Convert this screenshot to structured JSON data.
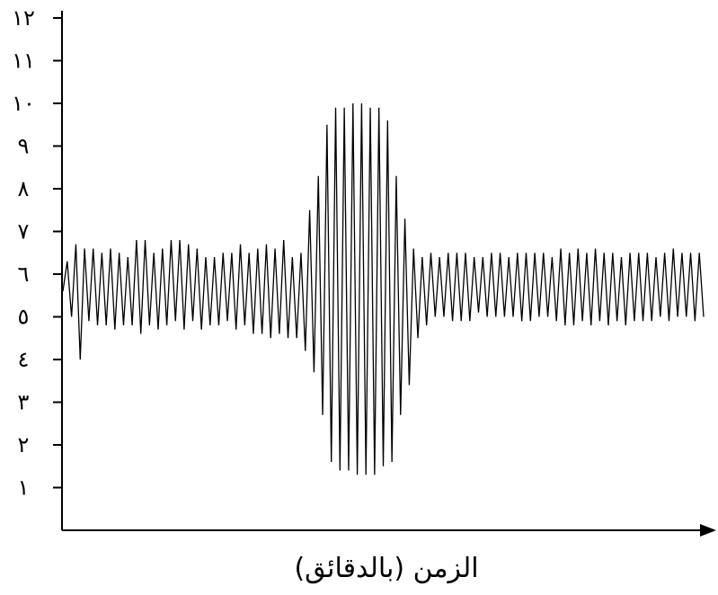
{
  "chart_data": {
    "type": "line",
    "title": "",
    "xlabel": "الزمن (بالدقائق)",
    "ylabel": "",
    "ylim": [
      0,
      12
    ],
    "y_ticks": [
      {
        "value": 1,
        "label": "١"
      },
      {
        "value": 2,
        "label": "٢"
      },
      {
        "value": 3,
        "label": "٣"
      },
      {
        "value": 4,
        "label": "٤"
      },
      {
        "value": 5,
        "label": "٥"
      },
      {
        "value": 6,
        "label": "٦"
      },
      {
        "value": 7,
        "label": "٧"
      },
      {
        "value": 8,
        "label": "٨"
      },
      {
        "value": 9,
        "label": "٩"
      },
      {
        "value": 10,
        "label": "١٠"
      },
      {
        "value": 11,
        "label": "١١"
      },
      {
        "value": 12,
        "label": "١٢"
      }
    ],
    "grid": false,
    "x_arrow": true,
    "series": [
      {
        "color": "#000000",
        "values": [
          5.6,
          6.3,
          5.0,
          6.7,
          4.0,
          6.6,
          4.9,
          6.6,
          4.8,
          6.5,
          4.8,
          6.6,
          4.7,
          6.5,
          4.8,
          6.4,
          4.8,
          6.8,
          4.6,
          6.8,
          4.8,
          6.5,
          4.7,
          6.6,
          4.8,
          6.8,
          4.9,
          6.8,
          4.7,
          6.7,
          4.9,
          6.6,
          4.7,
          6.4,
          4.8,
          6.4,
          4.8,
          6.5,
          4.9,
          6.5,
          4.7,
          6.7,
          4.8,
          6.5,
          4.6,
          6.6,
          4.6,
          6.7,
          4.5,
          6.6,
          4.6,
          6.8,
          4.5,
          6.4,
          4.5,
          6.5,
          4.2,
          7.5,
          3.7,
          8.3,
          2.7,
          9.5,
          1.6,
          9.9,
          1.4,
          9.9,
          1.4,
          10.0,
          1.3,
          10.0,
          1.3,
          9.9,
          1.3,
          9.9,
          1.5,
          9.6,
          1.6,
          8.3,
          2.7,
          7.3,
          3.4,
          6.6,
          4.5,
          6.4,
          4.8,
          6.5,
          5.0,
          6.4,
          5.0,
          6.5,
          4.9,
          6.5,
          4.9,
          6.5,
          4.9,
          6.4,
          5.1,
          6.4,
          5.0,
          6.5,
          5.0,
          6.5,
          5.0,
          6.4,
          5.0,
          6.5,
          4.9,
          6.5,
          4.9,
          6.5,
          5.0,
          6.5,
          5.0,
          6.4,
          4.9,
          6.6,
          4.8,
          6.5,
          4.8,
          6.6,
          4.9,
          6.5,
          4.8,
          6.6,
          4.9,
          6.5,
          4.8,
          6.5,
          4.9,
          6.4,
          4.8,
          6.5,
          4.9,
          6.5,
          4.9,
          6.5,
          4.9,
          6.4,
          5.0,
          6.5,
          4.9,
          6.6,
          5.0,
          6.5,
          5.0,
          6.5,
          4.9,
          6.5,
          5.0
        ]
      }
    ]
  }
}
